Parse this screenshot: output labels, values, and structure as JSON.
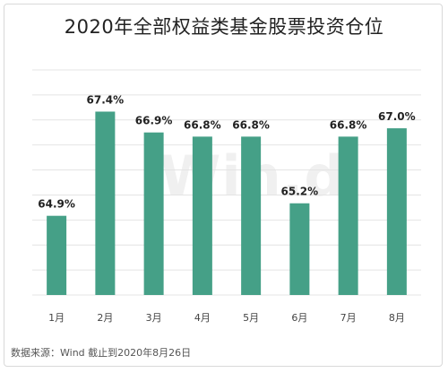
{
  "title": "2020年全部权益类基金股票投资仓位",
  "watermark": "Win.d",
  "source": "数据来源：Wind  截止到2020年8月26日",
  "colors": {
    "bar": "#45A087",
    "grid": "#e4e4e4",
    "label": "#222222",
    "tick": "#444444"
  },
  "chart_data": {
    "type": "bar",
    "title": "2020年全部权益类基金股票投资仓位",
    "xlabel": "",
    "ylabel": "",
    "ylim": [
      63.0,
      68.4
    ],
    "grid": true,
    "categories": [
      "1月",
      "2月",
      "3月",
      "4月",
      "5月",
      "6月",
      "7月",
      "8月"
    ],
    "values": [
      64.9,
      67.4,
      66.9,
      66.8,
      66.8,
      65.2,
      66.8,
      67.0
    ],
    "value_labels": [
      "64.9%",
      "67.4%",
      "66.9%",
      "66.8%",
      "66.8%",
      "65.2%",
      "66.8%",
      "67.0%"
    ]
  }
}
